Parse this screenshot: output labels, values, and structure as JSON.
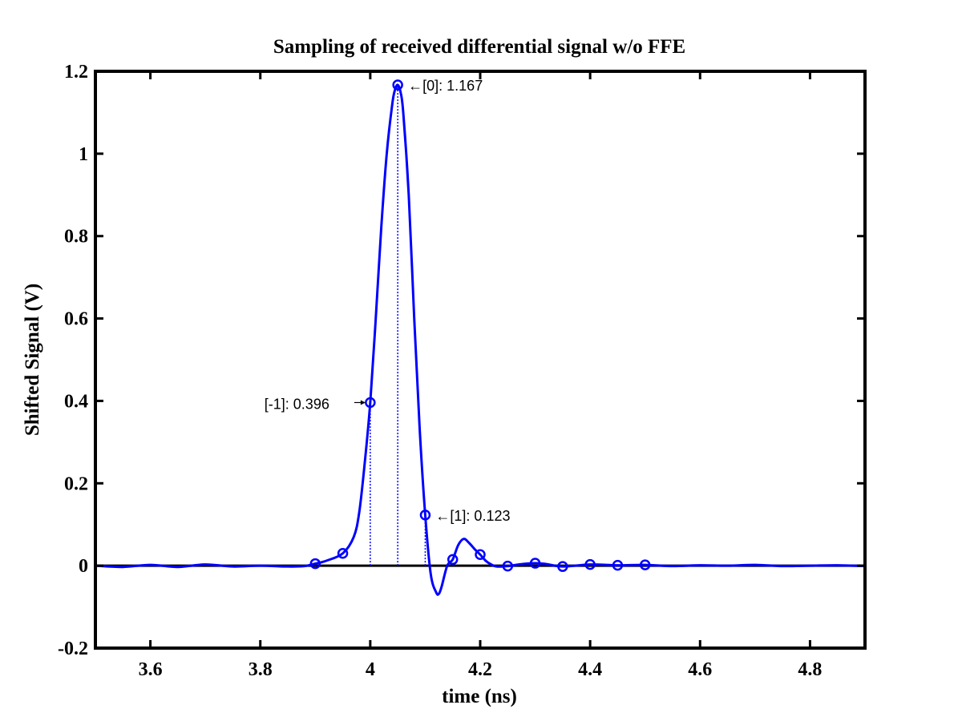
{
  "chart_data": {
    "type": "line",
    "title": "Sampling of received differential signal w/o FFE",
    "xlabel": "time (ns)",
    "ylabel": "Shifted Signal (V)",
    "xlim": [
      3.5,
      4.9
    ],
    "ylim": [
      -0.2,
      1.2
    ],
    "xticks": [
      3.6,
      3.8,
      4.0,
      4.2,
      4.4,
      4.6,
      4.8
    ],
    "xtick_labels": [
      "3.6",
      "3.8",
      "4",
      "4.2",
      "4.4",
      "4.6",
      "4.8"
    ],
    "yticks": [
      -0.2,
      0,
      0.2,
      0.4,
      0.6,
      0.8,
      1.0,
      1.2
    ],
    "ytick_labels": [
      "-0.2",
      "0",
      "0.2",
      "0.4",
      "0.6",
      "0.8",
      "1",
      "1.2"
    ],
    "grid": false,
    "line_color": "#0000ff",
    "zero_line_color": "#000000",
    "waveform": {
      "x": [
        3.5,
        3.55,
        3.6,
        3.65,
        3.7,
        3.75,
        3.8,
        3.85,
        3.88,
        3.9,
        3.92,
        3.95,
        3.97,
        3.98,
        3.99,
        4.0,
        4.01,
        4.02,
        4.03,
        4.04,
        4.045,
        4.05,
        4.055,
        4.06,
        4.07,
        4.08,
        4.09,
        4.1,
        4.11,
        4.12,
        4.125,
        4.13,
        4.14,
        4.15,
        4.16,
        4.17,
        4.18,
        4.19,
        4.2,
        4.21,
        4.22,
        4.23,
        4.25,
        4.27,
        4.3,
        4.32,
        4.35,
        4.4,
        4.45,
        4.5,
        4.55,
        4.6,
        4.65,
        4.7,
        4.75,
        4.8,
        4.85,
        4.9
      ],
      "y": [
        0.0,
        -0.003,
        0.002,
        -0.003,
        0.003,
        -0.002,
        0.0,
        -0.002,
        -0.001,
        0.005,
        0.012,
        0.03,
        0.07,
        0.13,
        0.25,
        0.396,
        0.6,
        0.82,
        1.0,
        1.12,
        1.155,
        1.167,
        1.15,
        1.1,
        0.9,
        0.6,
        0.33,
        0.123,
        -0.02,
        -0.065,
        -0.068,
        -0.05,
        0.0,
        0.015,
        0.05,
        0.065,
        0.055,
        0.04,
        0.027,
        0.012,
        0.003,
        -0.002,
        -0.001,
        0.003,
        0.006,
        0.004,
        -0.002,
        0.003,
        0.001,
        0.002,
        -0.001,
        0.001,
        0.0,
        0.002,
        -0.001,
        0.0,
        0.001,
        -0.001
      ]
    },
    "samples": {
      "x": [
        3.9,
        3.95,
        4.0,
        4.05,
        4.1,
        4.15,
        4.2,
        4.25,
        4.3,
        4.35,
        4.4,
        4.45,
        4.5
      ],
      "y": [
        0.005,
        0.03,
        0.396,
        1.167,
        0.123,
        0.015,
        0.027,
        -0.001,
        0.006,
        -0.002,
        0.003,
        0.001,
        0.002
      ]
    },
    "stems": [
      4.0,
      4.05,
      4.1
    ],
    "annotations": [
      {
        "text": "←[0]: 1.167",
        "x": 4.05,
        "y": 1.167,
        "side": "right"
      },
      {
        "text": "[-1]: 0.396",
        "x": 4.0,
        "y": 0.396,
        "side": "left"
      },
      {
        "text": "←[1]: 0.123",
        "x": 4.1,
        "y": 0.123,
        "side": "right"
      }
    ]
  }
}
